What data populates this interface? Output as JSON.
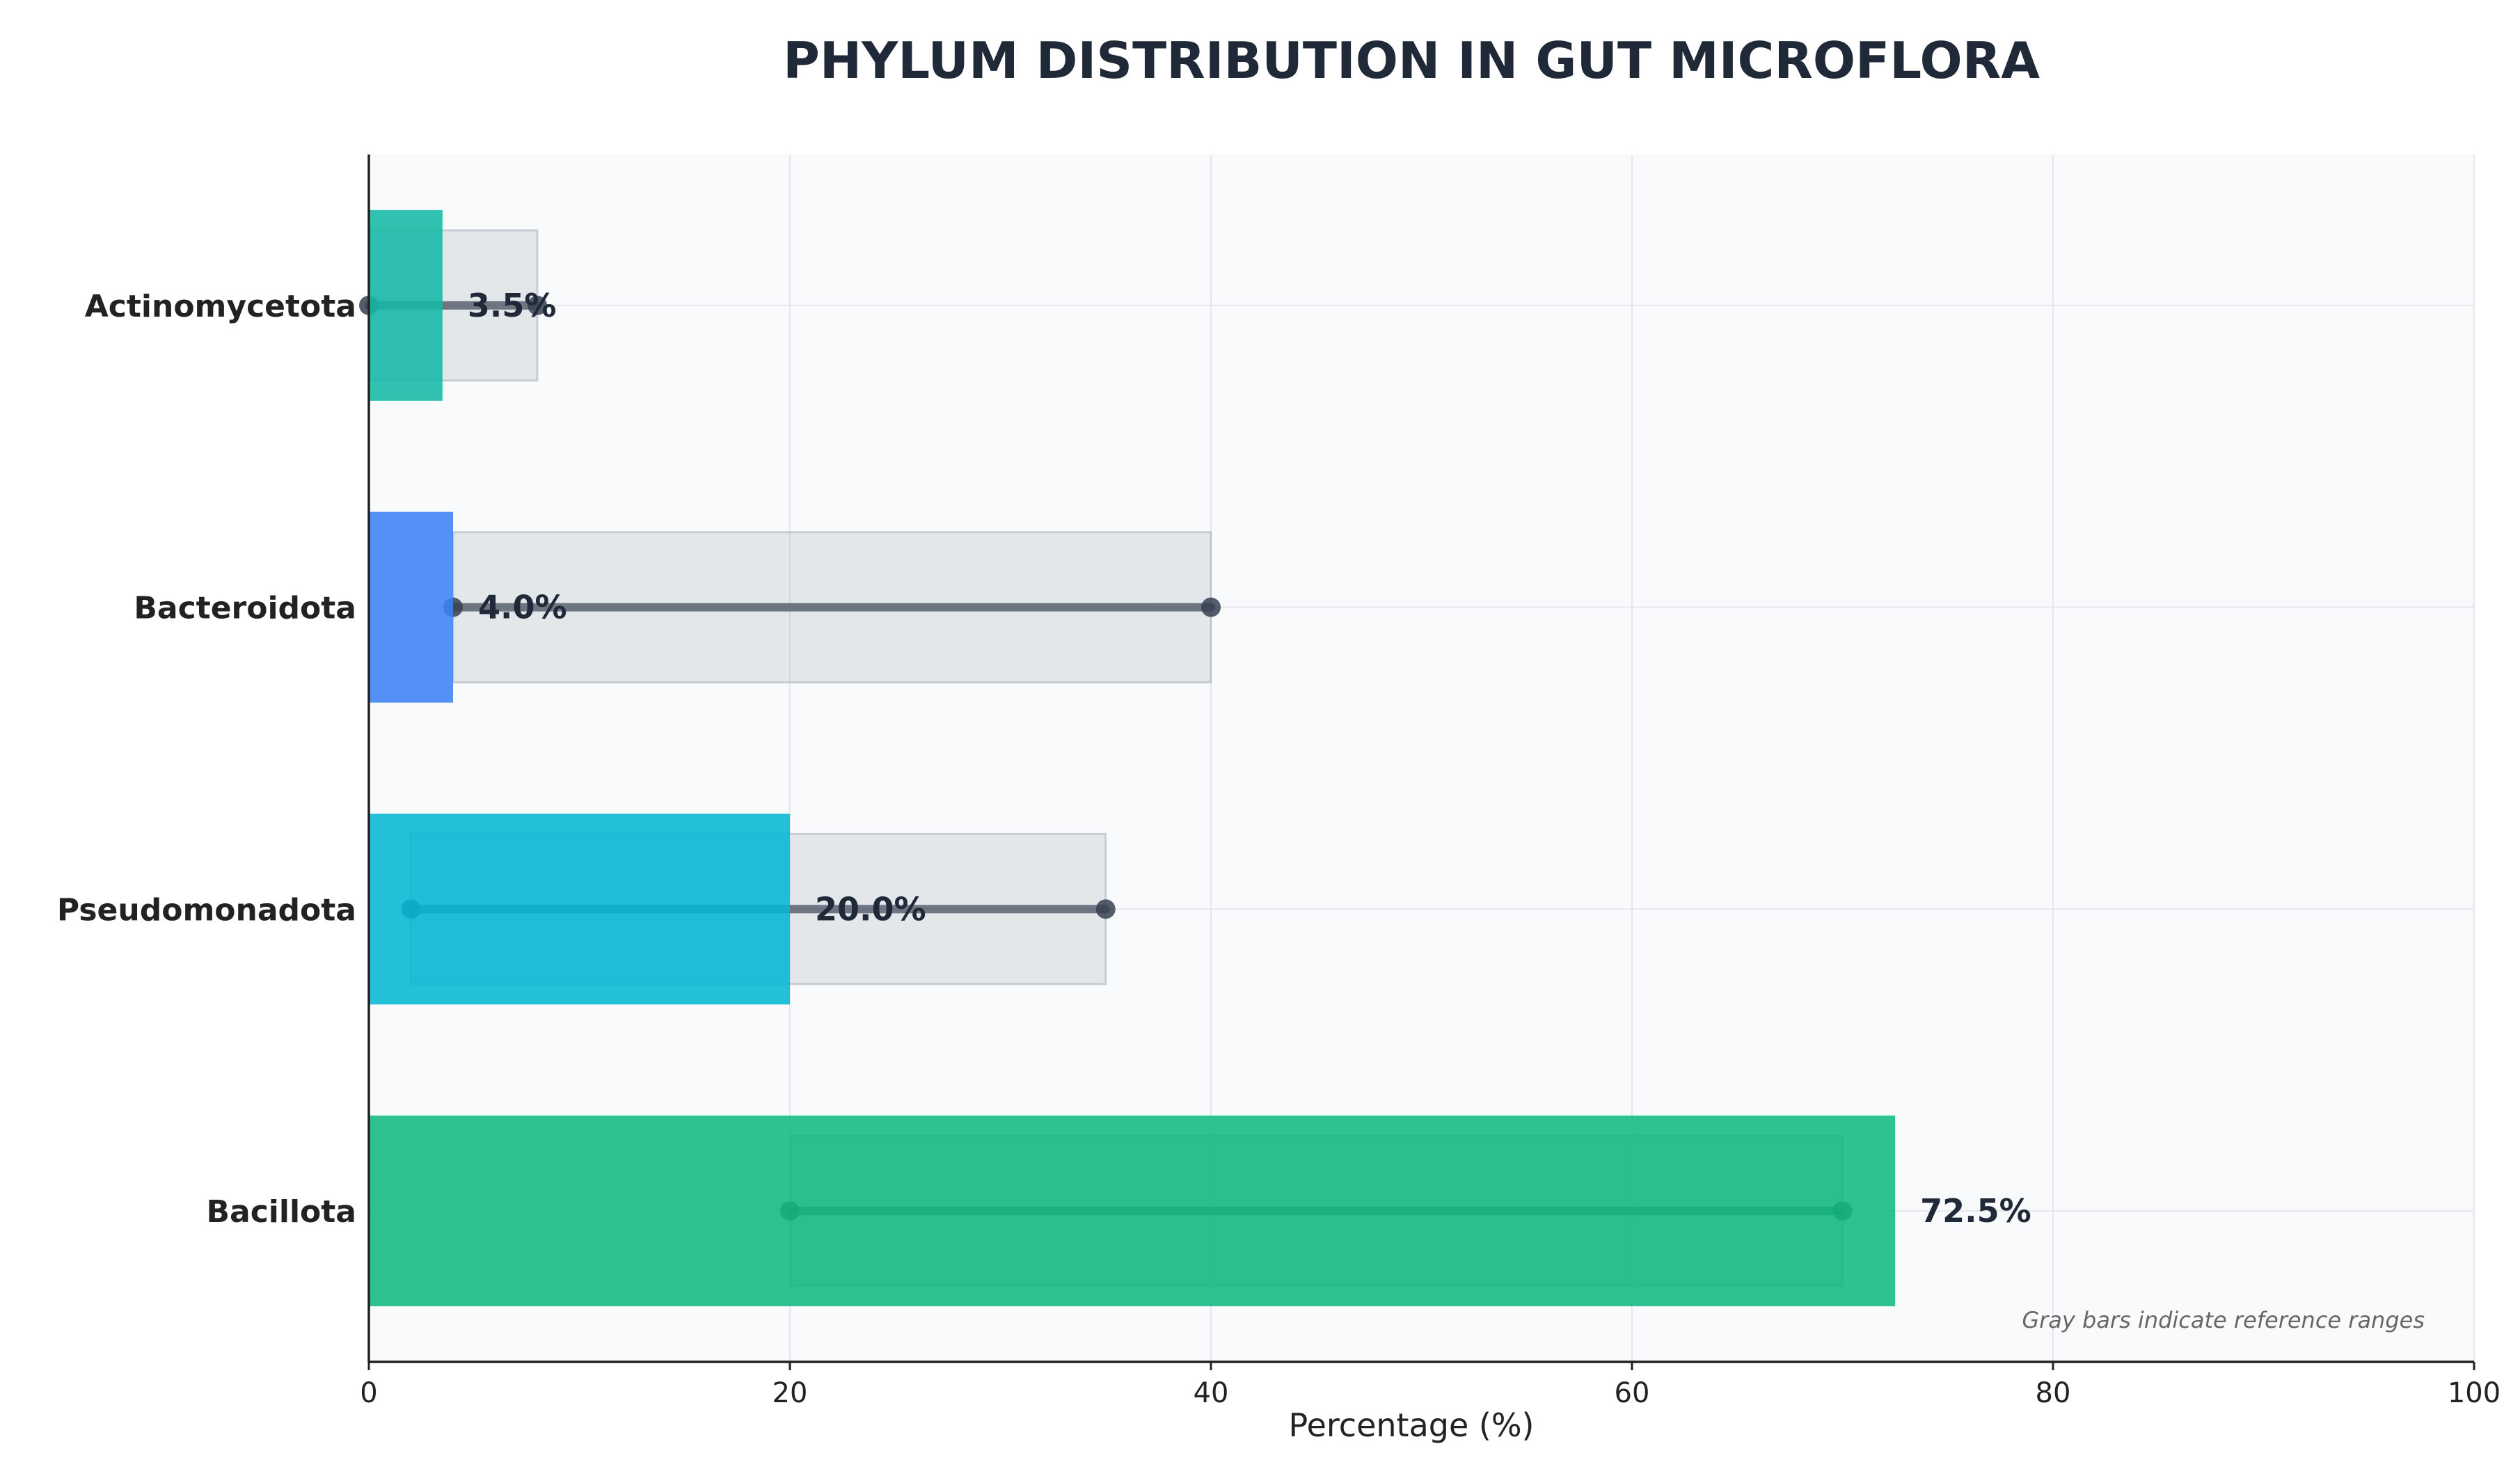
{
  "chart_data": {
    "type": "bar",
    "orientation": "horizontal",
    "title": "PHYLUM DISTRIBUTION IN GUT MICROFLORA",
    "xlabel": "Percentage (%)",
    "ylabel": "",
    "xlim": [
      0,
      100
    ],
    "xticks": [
      0,
      20,
      40,
      60,
      80,
      100
    ],
    "grid": true,
    "categories": [
      "Actinomycetota",
      "Bacteroidota",
      "Pseudomonadota",
      "Bacillota"
    ],
    "values": [
      3.5,
      4.0,
      20.0,
      72.5
    ],
    "value_labels": [
      "3.5%",
      "4.0%",
      "20.0%",
      "72.5%"
    ],
    "colors": [
      "#14b8a6",
      "#3b82f6",
      "#06b6d4",
      "#10b981"
    ],
    "reference_ranges": [
      [
        0,
        8
      ],
      [
        4,
        40
      ],
      [
        2,
        35
      ],
      [
        20,
        70
      ]
    ],
    "reference_color": "#9ca3af",
    "annotation": "Gray bars indicate reference ranges"
  }
}
